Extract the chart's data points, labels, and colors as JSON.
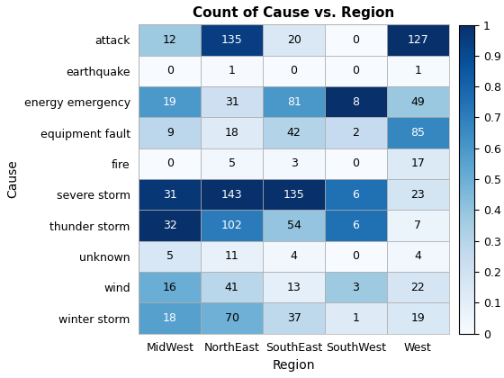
{
  "title": "Count of Cause vs. Region",
  "xlabel": "Region",
  "ylabel": "Cause",
  "columns": [
    "MidWest",
    "NorthEast",
    "SouthEast",
    "SouthWest",
    "West"
  ],
  "rows": [
    "attack",
    "earthquake",
    "energy emergency",
    "equipment fault",
    "fire",
    "severe storm",
    "thunder storm",
    "unknown",
    "wind",
    "winter storm"
  ],
  "values": [
    [
      12,
      135,
      20,
      0,
      127
    ],
    [
      0,
      1,
      0,
      0,
      1
    ],
    [
      19,
      31,
      81,
      8,
      49
    ],
    [
      9,
      18,
      42,
      2,
      85
    ],
    [
      0,
      5,
      3,
      0,
      17
    ],
    [
      31,
      143,
      135,
      6,
      23
    ],
    [
      32,
      102,
      54,
      6,
      7
    ],
    [
      5,
      11,
      4,
      0,
      4
    ],
    [
      16,
      41,
      13,
      3,
      22
    ],
    [
      18,
      70,
      37,
      1,
      19
    ]
  ],
  "cmap": "Blues",
  "colorbar_ticks": [
    0.0,
    0.1,
    0.2,
    0.3,
    0.4,
    0.5,
    0.6,
    0.7,
    0.8,
    0.9,
    1.0
  ],
  "colorbar_ticklabels": [
    "0",
    "0.1",
    "0.2",
    "0.3",
    "0.4",
    "0.5",
    "0.6",
    "0.7",
    "0.8",
    "0.9",
    "1"
  ],
  "text_threshold": 0.55,
  "dark_text_color": "#ffffff",
  "light_text_color": "#000000",
  "cell_edge_color": "#aaaaaa",
  "title_fontsize": 11,
  "label_fontsize": 10,
  "tick_fontsize": 9,
  "annot_fontsize": 9,
  "figwidth": 5.6,
  "figheight": 4.2,
  "dpi": 100
}
